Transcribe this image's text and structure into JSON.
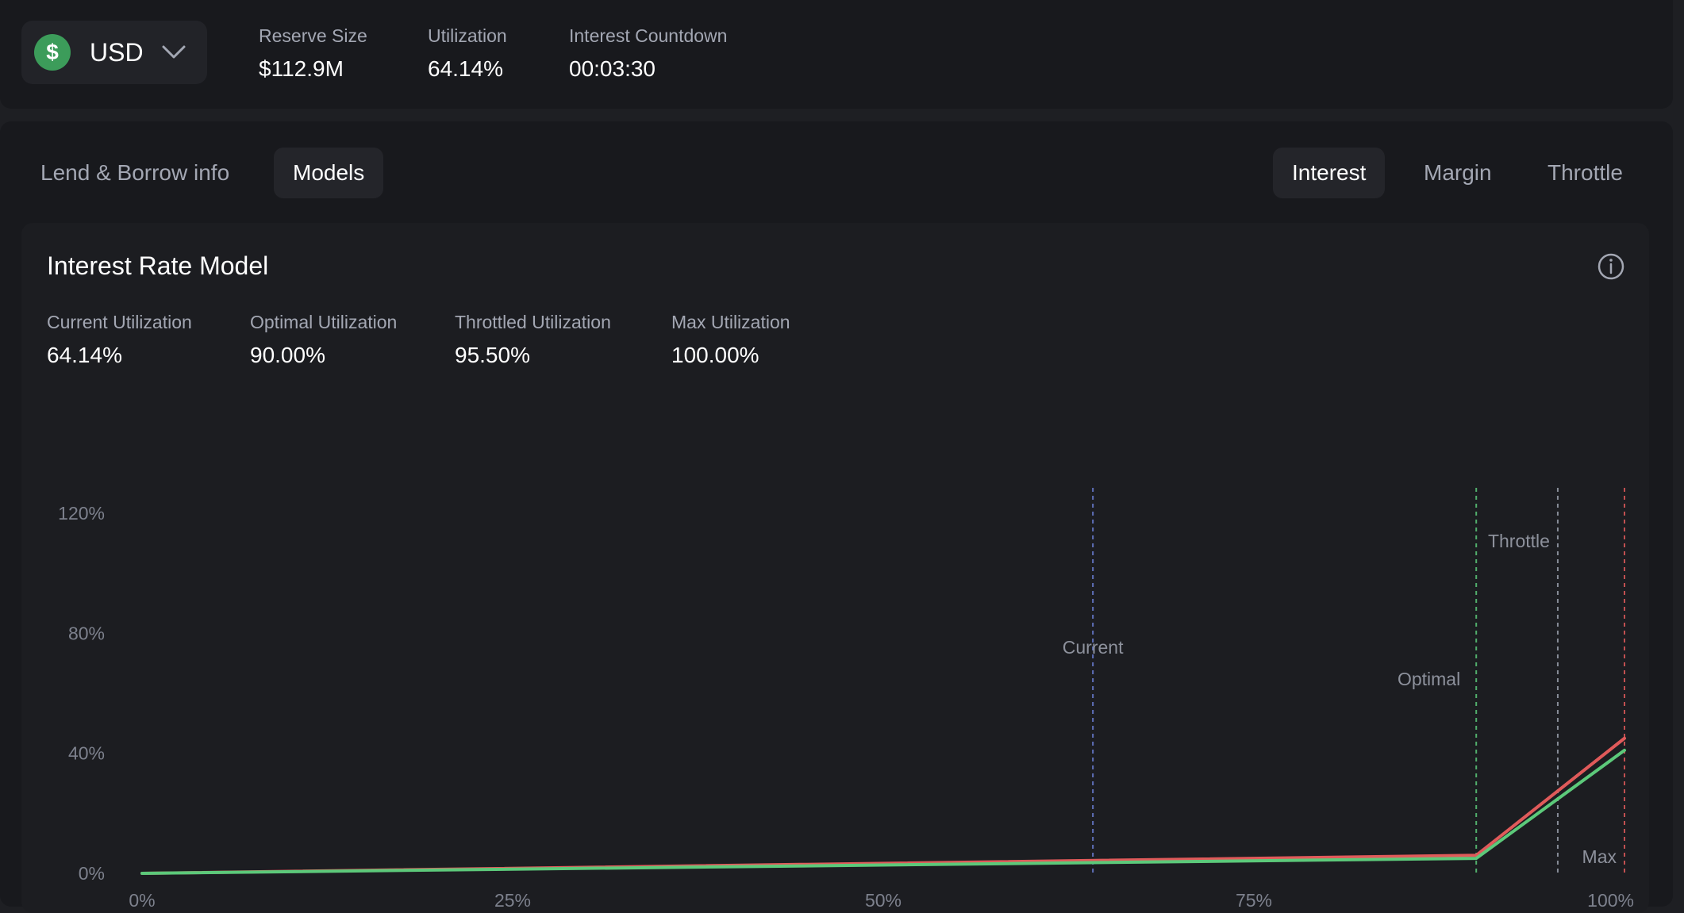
{
  "header": {
    "currency": {
      "label": "USD",
      "symbol": "$",
      "icon": "dollar-coin-icon"
    },
    "stats": [
      {
        "label": "Reserve Size",
        "value": "$112.9M"
      },
      {
        "label": "Utilization",
        "value": "64.14%"
      },
      {
        "label": "Interest Countdown",
        "value": "00:03:30"
      }
    ]
  },
  "tabs": {
    "left": [
      {
        "label": "Lend & Borrow info",
        "active": false
      },
      {
        "label": "Models",
        "active": true
      }
    ],
    "right": [
      {
        "label": "Interest",
        "active": true
      },
      {
        "label": "Margin",
        "active": false
      },
      {
        "label": "Throttle",
        "active": false
      }
    ]
  },
  "card": {
    "title": "Interest Rate Model",
    "metrics": [
      {
        "label": "Current Utilization",
        "value": "64.14%"
      },
      {
        "label": "Optimal Utilization",
        "value": "90.00%"
      },
      {
        "label": "Throttled Utilization",
        "value": "95.50%"
      },
      {
        "label": "Max Utilization",
        "value": "100.00%"
      }
    ]
  },
  "colors": {
    "borrow_line": "#e05a5a",
    "supply_line": "#5cc97a",
    "current_marker": "#6b7fd6",
    "optimal_marker": "#5cc97a",
    "throttle_marker": "#9aa0ad",
    "max_marker": "#e05a5a",
    "coin": "#3c9c5a"
  },
  "chart_data": {
    "type": "line",
    "x_ticks": [
      "0%",
      "25%",
      "50%",
      "75%",
      "100%"
    ],
    "y_ticks": [
      "0%",
      "40%",
      "80%",
      "120%"
    ],
    "xlim": [
      0,
      100
    ],
    "ylim": [
      0,
      120
    ],
    "series": [
      {
        "x": [
          0,
          90,
          100
        ],
        "y": [
          0,
          6,
          45
        ]
      },
      {
        "x": [
          0,
          90,
          100
        ],
        "y": [
          0,
          5,
          41
        ]
      }
    ],
    "markers": [
      {
        "label": "Current",
        "x": 64.14
      },
      {
        "label": "Optimal",
        "x": 90
      },
      {
        "label": "Throttle",
        "x": 95.5
      },
      {
        "label": "Max",
        "x": 100
      }
    ]
  }
}
